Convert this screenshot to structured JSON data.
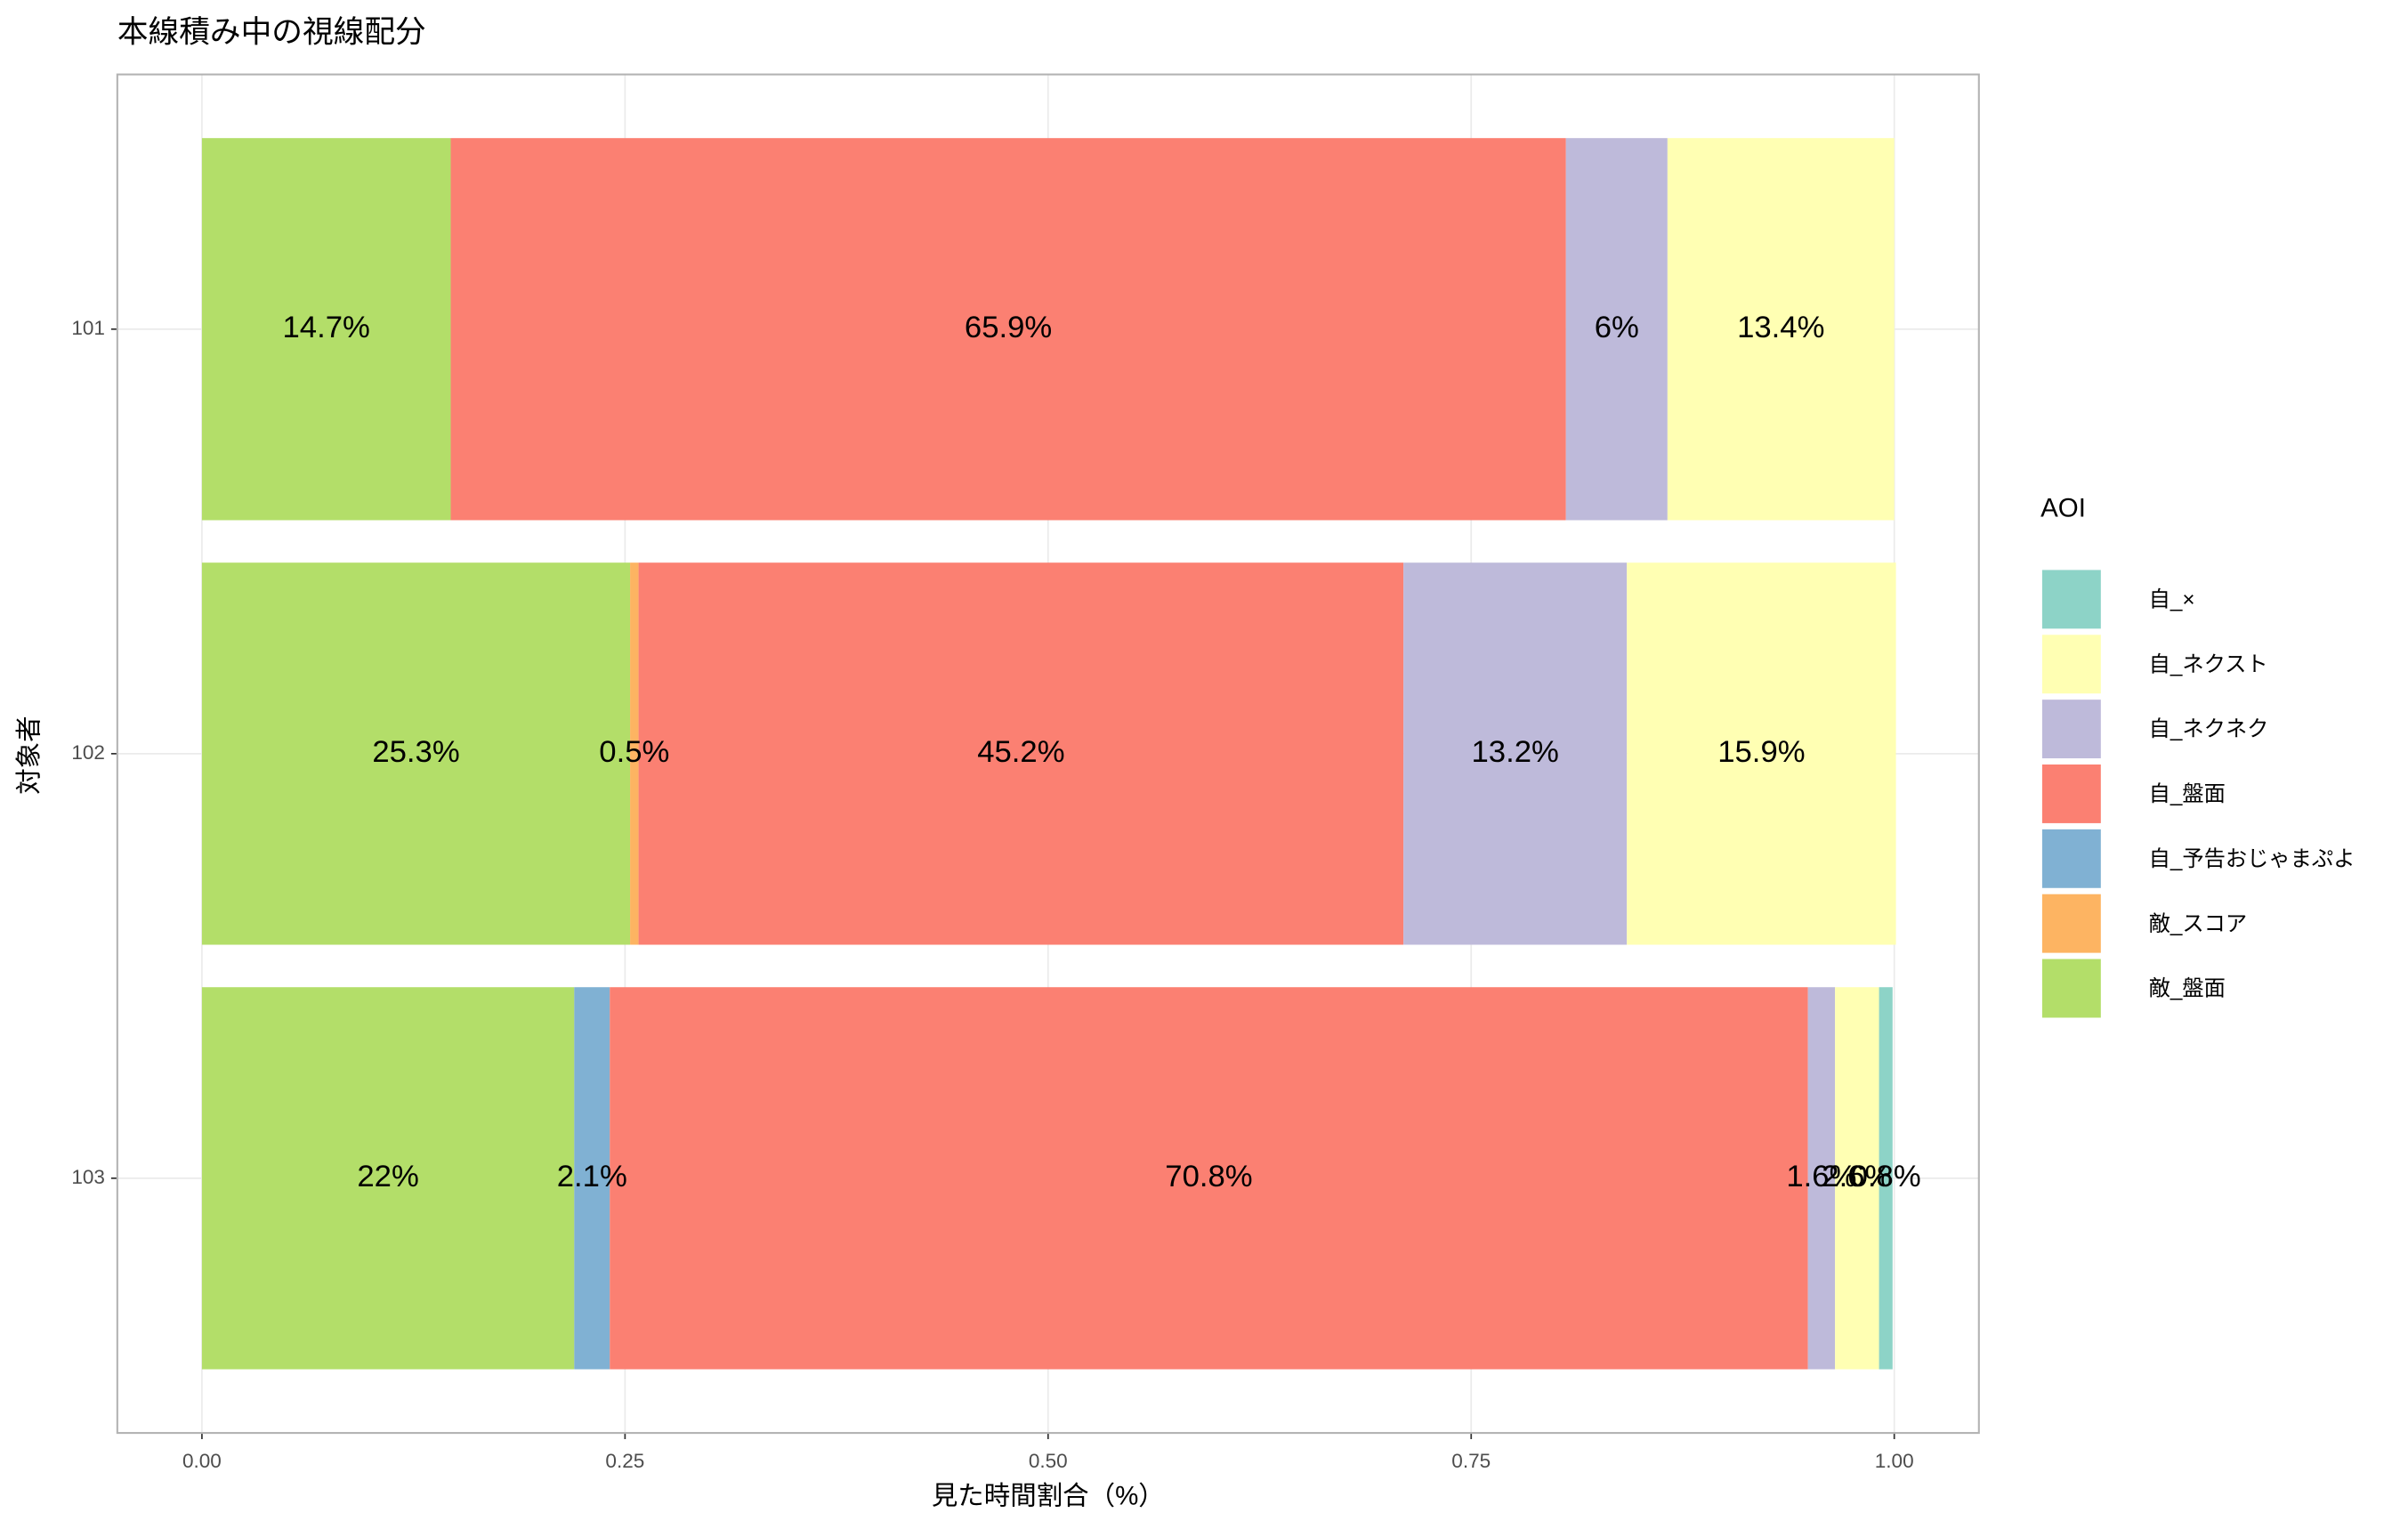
{
  "chart_data": {
    "type": "bar",
    "orientation": "horizontal",
    "stacked": true,
    "title": "本線積み中の視線配分",
    "x_label": "見た時間割合（%）",
    "y_label": "対象者",
    "legend_title": "AOI",
    "legend_position": "right",
    "grid": true,
    "categories": [
      "101",
      "102",
      "103"
    ],
    "xlim": [
      -0.05,
      1.05
    ],
    "xticks": [
      {
        "value": 0,
        "label": "0.00"
      },
      {
        "value": 0.25,
        "label": "0.25"
      },
      {
        "value": 0.5,
        "label": "0.50"
      },
      {
        "value": 0.75,
        "label": "0.75"
      },
      {
        "value": 1,
        "label": "1.00"
      }
    ],
    "series": [
      {
        "name": "自_×",
        "color": "#8dd3c7",
        "values": [
          null,
          null,
          0.008
        ],
        "value_labels": [
          null,
          null,
          "0.8%"
        ]
      },
      {
        "name": "自_ネクスト",
        "color": "#ffffb3",
        "values": [
          0.134,
          0.159,
          0.026
        ],
        "value_labels": [
          "13.4%",
          "15.9%",
          "2.6%"
        ]
      },
      {
        "name": "自_ネクネク",
        "color": "#bebada",
        "values": [
          0.06,
          0.132,
          0.016
        ],
        "value_labels": [
          "6%",
          "13.2%",
          "1.6%"
        ]
      },
      {
        "name": "自_盤面",
        "color": "#fb8072",
        "values": [
          0.659,
          0.452,
          0.708
        ],
        "value_labels": [
          "65.9%",
          "45.2%",
          "70.8%"
        ]
      },
      {
        "name": "自_予告おじゃまぷよ",
        "color": "#80b1d3",
        "values": [
          null,
          null,
          0.021
        ],
        "value_labels": [
          null,
          null,
          "2.1%"
        ]
      },
      {
        "name": "敵_スコア",
        "color": "#fdb462",
        "values": [
          null,
          0.005,
          null
        ],
        "value_labels": [
          null,
          "0.5%",
          null
        ]
      },
      {
        "name": "敵_盤面",
        "color": "#b3de69",
        "values": [
          0.147,
          0.253,
          0.22
        ],
        "value_labels": [
          "14.7%",
          "25.3%",
          "22%"
        ]
      }
    ]
  }
}
